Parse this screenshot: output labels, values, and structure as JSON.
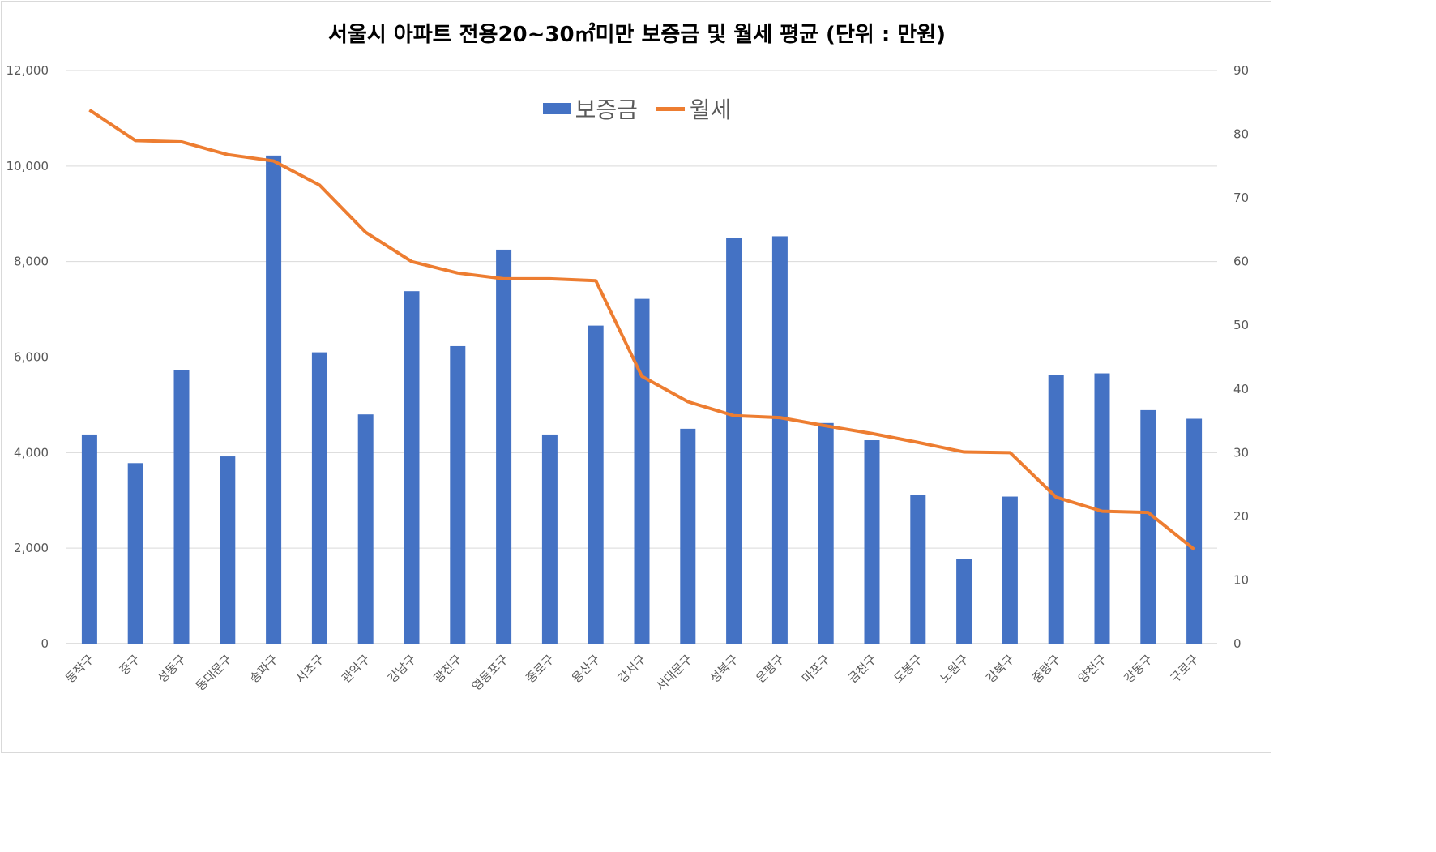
{
  "chart_data": {
    "type": "bar",
    "title": "서울시 아파트 전용20~30㎡미만 보증금 및 월세 평균 (단위 : 만원)",
    "categories": [
      "동작구",
      "중구",
      "성동구",
      "동대문구",
      "송파구",
      "서초구",
      "관악구",
      "강남구",
      "광진구",
      "영등포구",
      "종로구",
      "용산구",
      "강서구",
      "서대문구",
      "성북구",
      "은평구",
      "마포구",
      "금천구",
      "도봉구",
      "노원구",
      "강북구",
      "중랑구",
      "양천구",
      "강동구",
      "구로구"
    ],
    "series": [
      {
        "name": "보증금",
        "type": "bar",
        "axis": "left",
        "color": "#4472c4",
        "values": [
          4380,
          3780,
          5720,
          3920,
          10220,
          6100,
          4800,
          7380,
          6230,
          8250,
          4380,
          6660,
          7220,
          4500,
          8500,
          8530,
          4620,
          4260,
          3120,
          1780,
          3080,
          5630,
          5660,
          4890,
          4710
        ]
      },
      {
        "name": "월세",
        "type": "line",
        "axis": "right",
        "color": "#ed7d31",
        "values": [
          83.8,
          79.0,
          78.8,
          76.8,
          75.8,
          72.0,
          64.6,
          60.0,
          58.2,
          57.3,
          57.3,
          57.0,
          42.0,
          38.0,
          35.8,
          35.5,
          34.2,
          33.0,
          31.6,
          30.1,
          30.0,
          23.0,
          20.8,
          20.6,
          14.8
        ]
      }
    ],
    "y_left": {
      "ylim": [
        0,
        12000
      ],
      "ticks": [
        "0",
        "2,000",
        "4,000",
        "6,000",
        "8,000",
        "10,000",
        "12,000"
      ],
      "tick_values": [
        0,
        2000,
        4000,
        6000,
        8000,
        10000,
        12000
      ]
    },
    "y_right": {
      "ylim": [
        0,
        90
      ],
      "ticks": [
        "0",
        "10",
        "20",
        "30",
        "40",
        "50",
        "60",
        "70",
        "80",
        "90"
      ],
      "tick_values": [
        0,
        10,
        20,
        30,
        40,
        50,
        60,
        70,
        80,
        90
      ]
    },
    "grid": true,
    "legend_position": "top-center"
  }
}
